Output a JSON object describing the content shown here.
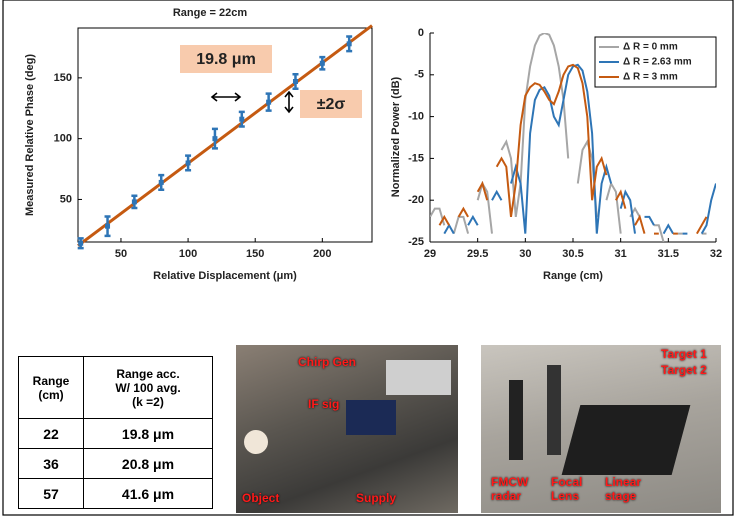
{
  "chart_data": [
    {
      "type": "errorbar",
      "title": "Range = 22cm",
      "xlabel": "Relative Displacement (μm)",
      "ylabel": "Measured Relative Phase (deg)",
      "x": [
        20,
        40,
        60,
        80,
        100,
        120,
        140,
        160,
        180,
        200,
        220
      ],
      "values": [
        14,
        28,
        48,
        64,
        80,
        100,
        116,
        130,
        147,
        162,
        178
      ],
      "errors": [
        4,
        8,
        5,
        6,
        6,
        8,
        6,
        7,
        6,
        5,
        6
      ],
      "color": "#2e75b6",
      "fit_x": [
        18,
        237
      ],
      "fit_values": [
        12,
        193
      ],
      "fit_color": "#c55a11",
      "xlim": [
        18,
        237
      ],
      "ylim": [
        15,
        191
      ],
      "xticks": [
        50,
        100,
        150,
        200
      ],
      "yticks": [
        50,
        100,
        150
      ],
      "annotations": [
        "19.8 μm",
        "±2σ"
      ]
    },
    {
      "type": "line",
      "xlabel": "Range (cm)",
      "ylabel": "Normalized Power (dB)",
      "x": [
        29,
        29.05,
        29.1,
        29.15,
        29.2,
        29.25,
        29.3,
        29.35,
        29.4,
        29.45,
        29.5,
        29.55,
        29.6,
        29.65,
        29.7,
        29.75,
        29.8,
        29.85,
        29.9,
        29.95,
        30,
        30.05,
        30.1,
        30.15,
        30.2,
        30.25,
        30.3,
        30.35,
        30.4,
        30.45,
        30.5,
        30.55,
        30.6,
        30.65,
        30.7,
        30.75,
        30.8,
        30.85,
        30.9,
        30.95,
        31,
        31.05,
        31.1,
        31.15,
        31.2,
        31.25,
        31.3,
        31.35,
        31.4,
        31.45,
        31.5,
        31.55,
        31.6,
        31.65,
        31.7,
        31.75,
        31.8,
        31.85,
        31.9,
        31.95,
        32
      ],
      "series": [
        {
          "name": "Δ R = 0 mm",
          "color": "#a6a6a6",
          "values": [
            -22,
            -21,
            -21,
            -23,
            null,
            -24,
            -22,
            -22,
            -24,
            null,
            -20,
            -18,
            -19,
            -24,
            null,
            -14,
            -13,
            -15,
            -22,
            -18,
            -8,
            -4,
            -1.5,
            -0.3,
            0,
            -0.2,
            -1.5,
            -4,
            -8,
            -15,
            null,
            -18,
            -14,
            -13,
            -15,
            -22,
            null,
            -20,
            -18,
            -19,
            -24,
            null,
            -22,
            -21,
            -22,
            null,
            null,
            -23,
            -23,
            -25,
            null,
            null,
            -24,
            -24,
            null,
            null,
            null,
            -24,
            -24,
            null,
            null
          ]
        },
        {
          "name": "Δ R = 2.63 mm",
          "color": "#2e75b6",
          "values": [
            null,
            null,
            null,
            -24,
            -23,
            -24,
            null,
            null,
            -23,
            -22,
            -23,
            null,
            null,
            -20,
            -19,
            -20,
            null,
            -18,
            -16,
            -18,
            -24,
            -12,
            -8,
            -6.8,
            -6.5,
            -7.5,
            -10,
            -11,
            -8,
            -5,
            -4,
            -3.8,
            -4.5,
            -7,
            -12,
            -24,
            -18,
            -16,
            -18,
            null,
            -21,
            -19,
            -20,
            -24,
            null,
            -22,
            -22,
            -23,
            null,
            -24,
            -23,
            -24,
            null,
            -24,
            -24,
            null,
            null,
            -24,
            -23,
            -20,
            -18
          ]
        },
        {
          "name": "Δ R = 3 mm",
          "color": "#c55a11",
          "values": [
            null,
            null,
            -23,
            -22,
            -23,
            null,
            -22,
            -21,
            -22,
            null,
            -19,
            -18,
            -20,
            null,
            -16,
            -15,
            -16,
            -22,
            -18,
            -11,
            -7.5,
            -6.5,
            -6,
            -6.2,
            -7,
            -8,
            -8.5,
            -7,
            -5,
            -4,
            -3.8,
            -4.2,
            -6,
            -10,
            -20,
            -16,
            -15,
            -17,
            null,
            -20,
            -19,
            -21,
            null,
            -23,
            -22,
            -24,
            null,
            -24,
            -24,
            null,
            null,
            -24,
            -24,
            null,
            null,
            null,
            -24,
            -23,
            -22,
            null,
            null
          ]
        }
      ],
      "xlim": [
        29,
        32
      ],
      "ylim": [
        -25,
        0
      ],
      "xticks": [
        29,
        29.5,
        30,
        30.5,
        31,
        31.5,
        32
      ],
      "yticks": [
        0,
        -5,
        -10,
        -15,
        -20,
        -25
      ],
      "legend": "upper-right"
    }
  ],
  "table": {
    "header": [
      "Range\n(cm)",
      "Range acc.\nW/ 100 avg.\n(k =2)"
    ],
    "rows": [
      [
        "22",
        "19.8 μm"
      ],
      [
        "36",
        "20.8 μm"
      ],
      [
        "57",
        "41.6 μm"
      ]
    ]
  },
  "photos": [
    {
      "labels": [
        "Chirp Gen",
        "IF sig",
        "Object",
        "Supply"
      ]
    },
    {
      "labels": [
        "Target 1",
        "Target 2",
        "FMCW\nradar",
        "Focal\nLens",
        "Linear\nstage"
      ]
    }
  ]
}
